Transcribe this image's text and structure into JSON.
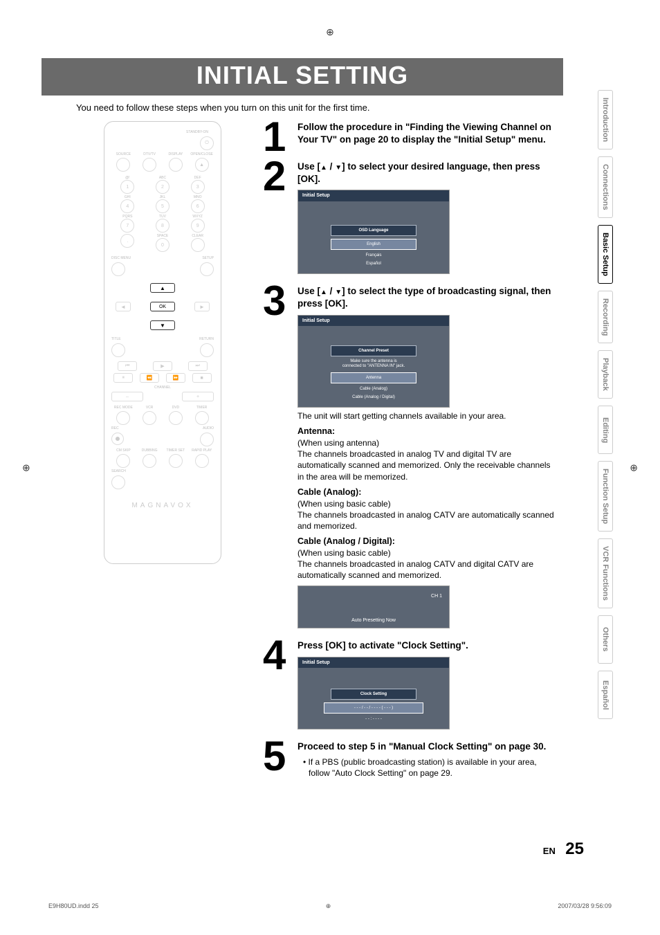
{
  "doc": {
    "indd_ref": "E9H80UD.indd   25",
    "timestamp": "2007/03/28   9:56:09",
    "page_lang": "EN",
    "page_num": "25"
  },
  "title_band": "INITIAL SETTING",
  "subtitle": "You need to follow these steps when you turn on this unit for the first time.",
  "tabs": [
    {
      "label": "Introduction",
      "active": false
    },
    {
      "label": "Connections",
      "active": false
    },
    {
      "label": "Basic Setup",
      "active": true
    },
    {
      "label": "Recording",
      "active": false
    },
    {
      "label": "Playback",
      "active": false
    },
    {
      "label": "Editing",
      "active": false
    },
    {
      "label": "Function Setup",
      "active": false
    },
    {
      "label": "VCR Functions",
      "active": false
    },
    {
      "label": "Others",
      "active": false
    },
    {
      "label": "Español",
      "active": false
    }
  ],
  "remote": {
    "top_labels": [
      "SOURCE",
      "DTV/TV",
      "DISPLAY",
      "OPEN/CLOSE"
    ],
    "standby": "STANDBY-ON",
    "keypad_labels": [
      "@!",
      "ABC",
      "DEF",
      "GHI",
      "JKL",
      "MNO",
      "PQRS",
      "TUV",
      "WXYZ",
      "",
      "SPACE",
      "CLEAR"
    ],
    "keypad_nums": [
      "1",
      "2",
      "3",
      "4",
      "5",
      "6",
      "7",
      "8",
      "9",
      ".",
      "0",
      ""
    ],
    "disc_menu": "DISC MENU",
    "setup": "SETUP",
    "ok": "OK",
    "title": "TITLE",
    "return": "RETURN",
    "channel": "CHANNEL",
    "rec_mode": "REC MODE",
    "vcr": "VCR",
    "dvd": "DVD",
    "timer": "TIMER",
    "rec": "REC",
    "audio": "AUDIO",
    "cm_skip": "CM SKIP",
    "dubbing": "DUBBING",
    "timer_set": "TIMER\nSET",
    "rapid": "RAPID PLAY",
    "search": "SEARCH",
    "brand": "MAGNAVOX"
  },
  "steps": {
    "s1": {
      "num": "1",
      "title": "Follow the procedure in \"Finding the Viewing Channel on Your TV\" on page 20 to display the \"Initial Setup\" menu."
    },
    "s2": {
      "num": "2",
      "title_a": "Use [",
      "title_b": " / ",
      "title_c": "] to select your desired language, then press [OK].",
      "osd_title": "Initial Setup",
      "osd_head": "OSD Language",
      "opts": [
        "English",
        "Français",
        "Español"
      ]
    },
    "s3": {
      "num": "3",
      "title_a": "Use [",
      "title_b": " / ",
      "title_c": "] to select the type of broadcasting signal, then press [OK].",
      "osd_title": "Initial Setup",
      "osd_head": "Channel Preset",
      "osd_note1": "Make sure the antenna is",
      "osd_note2": "connected to \"ANTENNA IN\" jack.",
      "opts": [
        "Antenna",
        "Cable (Analog)",
        "Cable (Analog / Digital)"
      ],
      "after1": "The unit will start getting channels available in your area.",
      "h1": "Antenna:",
      "h1_sub": "(When using antenna)",
      "p1": "The channels broadcasted in analog TV and digital TV are automatically scanned and memorized. Only the receivable channels in the area will be memorized.",
      "h2": "Cable (Analog):",
      "h2_sub": "(When using basic cable)",
      "p2": "The channels broadcasted in analog CATV are automatically scanned and memorized.",
      "h3": "Cable (Analog / Digital):",
      "h3_sub": "(When using basic cable)",
      "p3": "The channels broadcasted in analog CATV and digital CATV are automatically scanned and memorized.",
      "osd2_ch": "CH     1",
      "osd2_foot": "Auto Presetting Now"
    },
    "s4": {
      "num": "4",
      "title": "Press [OK] to activate \"Clock Setting\".",
      "osd_title": "Initial Setup",
      "osd_head": "Clock Setting",
      "osd_val1": "- - - / - -  / - - - -  ( - - - )",
      "osd_val2": "- - : - -  - -"
    },
    "s5": {
      "num": "5",
      "title": "Proceed to step 5 in \"Manual Clock Setting\" on page 30.",
      "bullet": "If a PBS (public broadcasting station) is available in your area, follow \"Auto Clock Setting\" on page 29."
    }
  }
}
